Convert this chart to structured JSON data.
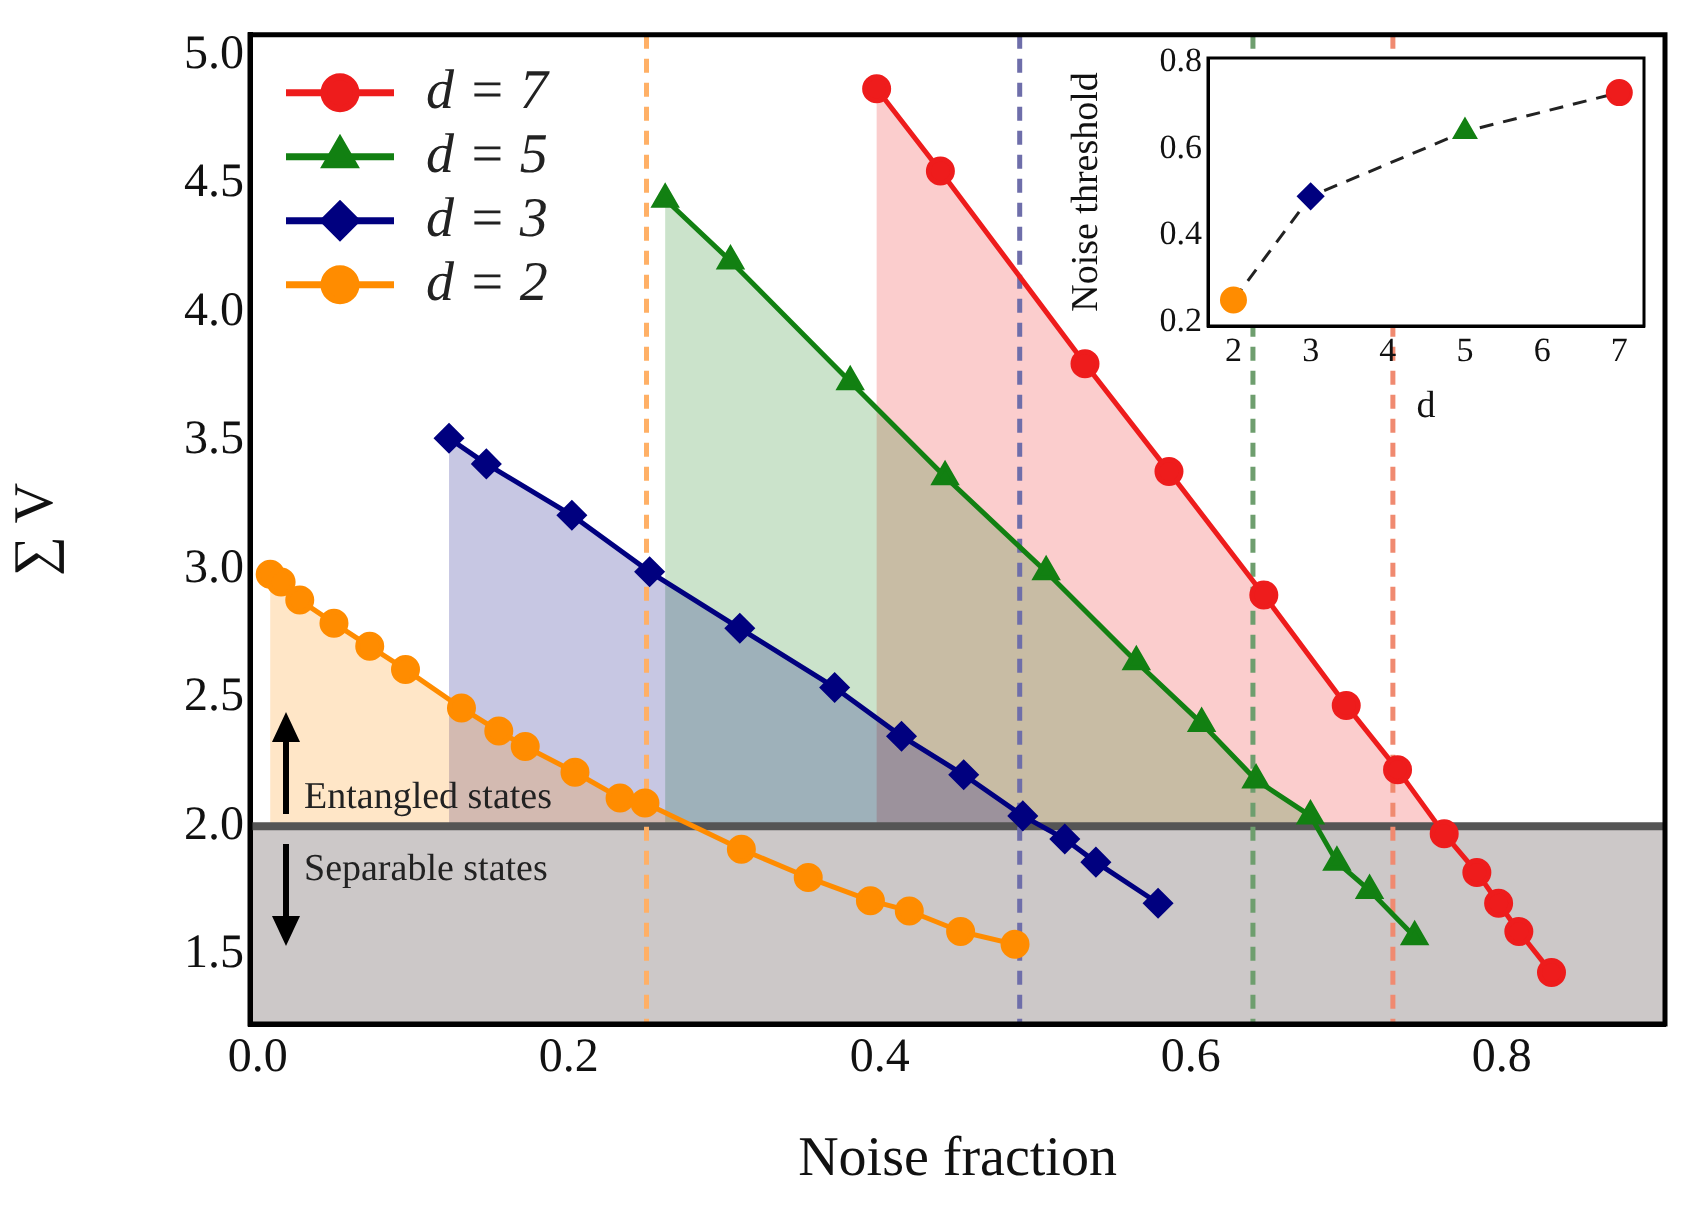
{
  "chart_data": [
    {
      "type": "line",
      "xlabel": "Noise fraction",
      "ylabel": "∑ V",
      "xlim": [
        -0.005,
        0.905
      ],
      "ylim": [
        1.23,
        5.08
      ],
      "xticks": [
        {
          "value": 0,
          "label": "0.0"
        },
        0.2,
        0.4,
        0.6,
        0.8
      ],
      "yticks": [
        1.5,
        {
          "value": 2,
          "label": "2.0"
        },
        2.5,
        {
          "value": 3,
          "label": "3.0"
        },
        3.5,
        {
          "value": 4,
          "label": "4.0"
        },
        4.5,
        {
          "value": 5,
          "label": "5.0"
        }
      ],
      "grid": false,
      "legend": "top left",
      "line_style": "solid",
      "series": [
        {
          "name": "d = 7",
          "type": "area",
          "marker": "circle",
          "color": "#ee1c1c",
          "x": [
            0.398,
            0.439,
            0.532,
            0.586,
            0.647,
            0.7,
            0.733,
            0.763,
            0.784,
            0.798,
            0.811,
            0.832
          ],
          "values": [
            4.87,
            4.55,
            3.8,
            3.38,
            2.9,
            2.47,
            2.22,
            1.97,
            1.82,
            1.7,
            1.59,
            1.43
          ]
        },
        {
          "name": "d = 5",
          "type": "area",
          "marker": "triangle",
          "color": "#128012",
          "x": [
            0.262,
            0.304,
            0.381,
            0.442,
            0.507,
            0.565,
            0.607,
            0.642,
            0.677,
            0.694,
            0.715,
            0.744
          ],
          "values": [
            4.44,
            4.2,
            3.73,
            3.36,
            2.99,
            2.64,
            2.4,
            2.18,
            2.04,
            1.86,
            1.75,
            1.57
          ]
        },
        {
          "name": "d = 3",
          "type": "area",
          "marker": "diamond",
          "color": "#00007f",
          "x": [
            0.123,
            0.147,
            0.202,
            0.252,
            0.31,
            0.371,
            0.414,
            0.454,
            0.492,
            0.519,
            0.539,
            0.579
          ],
          "values": [
            3.51,
            3.41,
            3.21,
            2.99,
            2.77,
            2.54,
            2.35,
            2.2,
            2.04,
            1.95,
            1.86,
            1.7
          ]
        },
        {
          "name": "d = 2",
          "type": "area",
          "marker": "circle",
          "color": "#ff8c00",
          "x": [
            0.008,
            0.015,
            0.027,
            0.049,
            0.072,
            0.095,
            0.131,
            0.155,
            0.172,
            0.204,
            0.233,
            0.249,
            0.311,
            0.354,
            0.394,
            0.419,
            0.452,
            0.487
          ],
          "values": [
            2.98,
            2.95,
            2.88,
            2.79,
            2.7,
            2.61,
            2.46,
            2.37,
            2.31,
            2.21,
            2.11,
            2.09,
            1.91,
            1.8,
            1.71,
            1.67,
            1.59,
            1.54
          ]
        }
      ],
      "ref_lines": [
        {
          "axis": "y",
          "value": 2,
          "color": "#555555",
          "line_style": "solid"
        },
        {
          "axis": "x",
          "value": 0.25,
          "color": "#ffb066",
          "line_style": "dashed"
        },
        {
          "axis": "x",
          "value": 0.49,
          "color": "#6e6eaa",
          "line_style": "dashed"
        },
        {
          "axis": "x",
          "value": 0.64,
          "color": "#6e9e6e",
          "line_style": "dashed"
        },
        {
          "axis": "x",
          "value": 0.73,
          "color": "#f08a70",
          "line_style": "dashed"
        }
      ],
      "bands": [
        {
          "axis": "y",
          "from": 1.23,
          "to": 2,
          "color": "#ccc8c8"
        }
      ],
      "annotations": [
        "Entangled states",
        "Separable states"
      ]
    },
    {
      "type": "line",
      "xlabel": "d",
      "ylabel": "Noise threshold",
      "xlim": [
        1.67,
        7.32
      ],
      "ylim": [
        0.19,
        0.81
      ],
      "xticks": [
        2,
        3,
        4,
        5,
        6,
        7
      ],
      "yticks": [
        0.2,
        0.4,
        0.6,
        0.8
      ],
      "grid": false,
      "legend": false,
      "series": [
        {
          "color": "#222222",
          "line_style": "dashed",
          "marker": [
            "circle",
            "diamond",
            "triangle",
            "circle"
          ],
          "colors": [
            "#ff8c00",
            "#00007f",
            "#128012",
            "#ee1c1c"
          ],
          "x": [
            2,
            3,
            5,
            7
          ],
          "values": [
            0.25,
            0.49,
            0.64,
            0.73
          ]
        }
      ]
    }
  ]
}
